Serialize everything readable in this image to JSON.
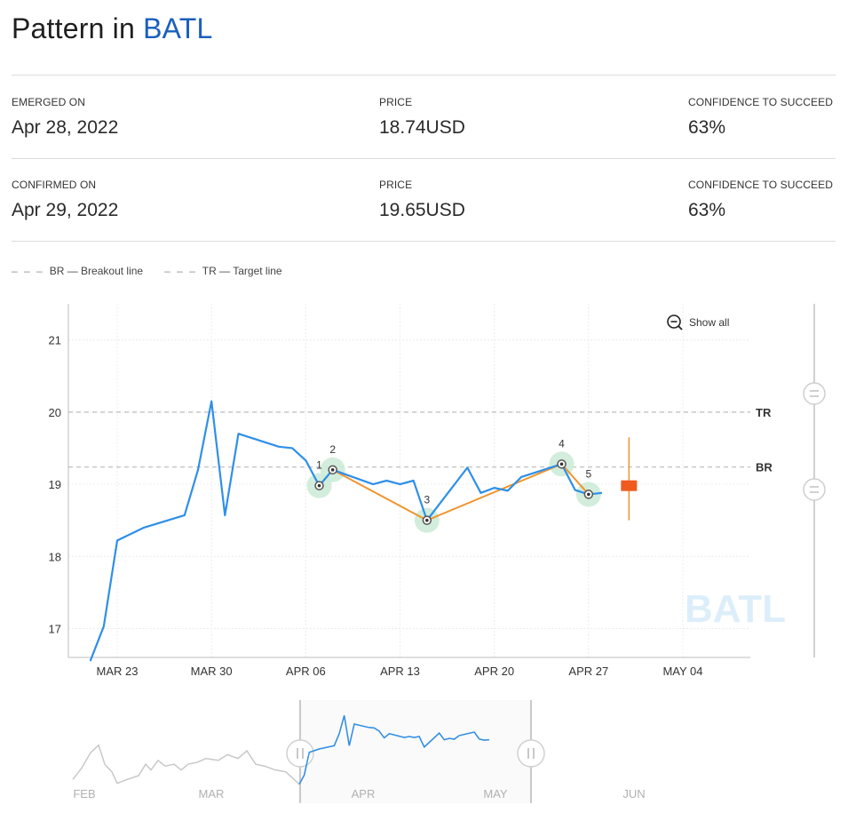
{
  "header": {
    "title_prefix": "Pattern in",
    "ticker": "BATL"
  },
  "emerged": {
    "date_label": "EMERGED ON",
    "date": "Apr 28, 2022",
    "price_label": "PRICE",
    "price": "18.74USD",
    "confidence_label": "CONFIDENCE TO SUCCEED",
    "confidence": "63%"
  },
  "confirmed": {
    "date_label": "CONFIRMED ON",
    "date": "Apr 29, 2022",
    "price_label": "PRICE",
    "price": "19.65USD",
    "confidence_label": "CONFIDENCE TO SUCCEED",
    "confidence": "63%"
  },
  "legend": {
    "dash": "– – –",
    "br": "BR — Breakout line",
    "tr": "TR — Target line"
  },
  "chart_data": {
    "type": "line",
    "watermark": "BATL",
    "show_all_label": "Show all",
    "x_ticks": [
      "MAR 23",
      "MAR 30",
      "APR 06",
      "APR 13",
      "APR 20",
      "APR 27",
      "MAY 04"
    ],
    "y_ticks": [
      17,
      18,
      19,
      20,
      21
    ],
    "ylim": [
      16.6,
      21.5
    ],
    "grid": true,
    "series": [
      {
        "color": "#2f8fe8",
        "x": [
          "Mar 21",
          "Mar 22",
          "Mar 23",
          "Mar 25",
          "Mar 28",
          "Mar 29",
          "Mar 30",
          "Mar 31",
          "Apr 1",
          "Apr 4",
          "Apr 5",
          "Apr 6",
          "Apr 7",
          "Apr 8",
          "Apr 11",
          "Apr 12",
          "Apr 13",
          "Apr 14",
          "Apr 15",
          "Apr 18",
          "Apr 19",
          "Apr 20",
          "Apr 21",
          "Apr 22",
          "Apr 25",
          "Apr 26",
          "Apr 27",
          "Apr 28"
        ],
        "y": [
          16.55,
          17.03,
          18.22,
          18.4,
          18.57,
          19.2,
          20.15,
          18.57,
          19.7,
          19.52,
          19.5,
          19.33,
          18.98,
          19.2,
          19.0,
          19.05,
          19.0,
          19.05,
          18.5,
          19.23,
          18.88,
          18.95,
          18.91,
          19.1,
          19.28,
          18.92,
          18.86,
          18.88
        ]
      }
    ],
    "lines": {
      "TR": 20.0,
      "BR": 19.24,
      "tr_label": "TR",
      "br_label": "BR"
    },
    "pattern_points": [
      {
        "label": "1",
        "x": "Apr 7",
        "y": 18.98
      },
      {
        "label": "2",
        "x": "Apr 8",
        "y": 19.2
      },
      {
        "label": "3",
        "x": "Apr 15",
        "y": 18.5
      },
      {
        "label": "4",
        "x": "Apr 25",
        "y": 19.28
      },
      {
        "label": "5",
        "x": "Apr 27",
        "y": 18.86
      }
    ],
    "pattern_color": "#f0952e",
    "marker_color": "#f05a1e",
    "navigator": {
      "months": [
        "FEB",
        "MAR",
        "APR",
        "MAY",
        "JUN"
      ]
    }
  }
}
